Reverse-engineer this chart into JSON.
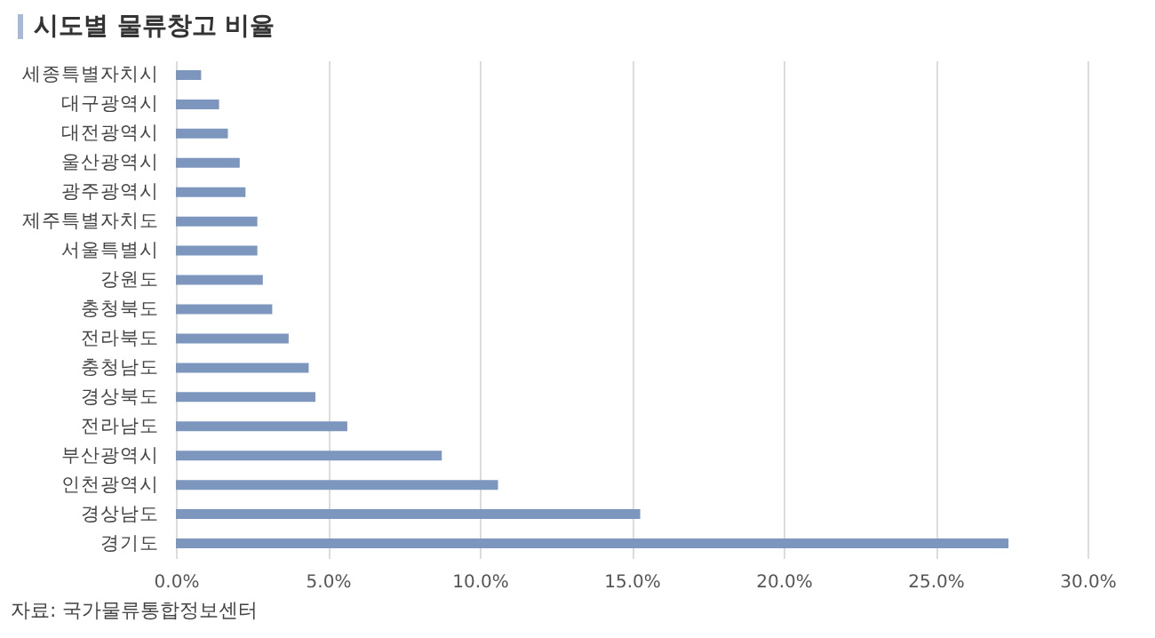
{
  "chart_data": {
    "type": "bar",
    "orientation": "horizontal",
    "title": "시도별 물류창고 비율",
    "categories": [
      "세종특별자치시",
      "대구광역시",
      "대전광역시",
      "울산광역시",
      "광주광역시",
      "제주특별자치도",
      "서울특별시",
      "강원도",
      "충청북도",
      "전라북도",
      "충청남도",
      "경상북도",
      "전라남도",
      "부산광역시",
      "인천광역시",
      "경상남도",
      "경기도"
    ],
    "values": [
      0.83,
      1.42,
      1.71,
      2.1,
      2.29,
      2.68,
      2.68,
      2.86,
      3.17,
      3.71,
      4.37,
      4.59,
      5.64,
      8.75,
      10.6,
      15.28,
      27.4
    ],
    "color": "#7d96be",
    "xlim": [
      0,
      30
    ],
    "xticks": [
      {
        "value": 0,
        "label": "0.0%"
      },
      {
        "value": 5,
        "label": "5.0%"
      },
      {
        "value": 10,
        "label": "10.0%"
      },
      {
        "value": 15,
        "label": "15.0%"
      },
      {
        "value": 20,
        "label": "20.0%"
      },
      {
        "value": 25,
        "label": "25.0%"
      },
      {
        "value": 30,
        "label": "30.0%"
      }
    ],
    "grid": "x",
    "annotations": [
      "자료: 국가물류통합정보센터"
    ]
  }
}
